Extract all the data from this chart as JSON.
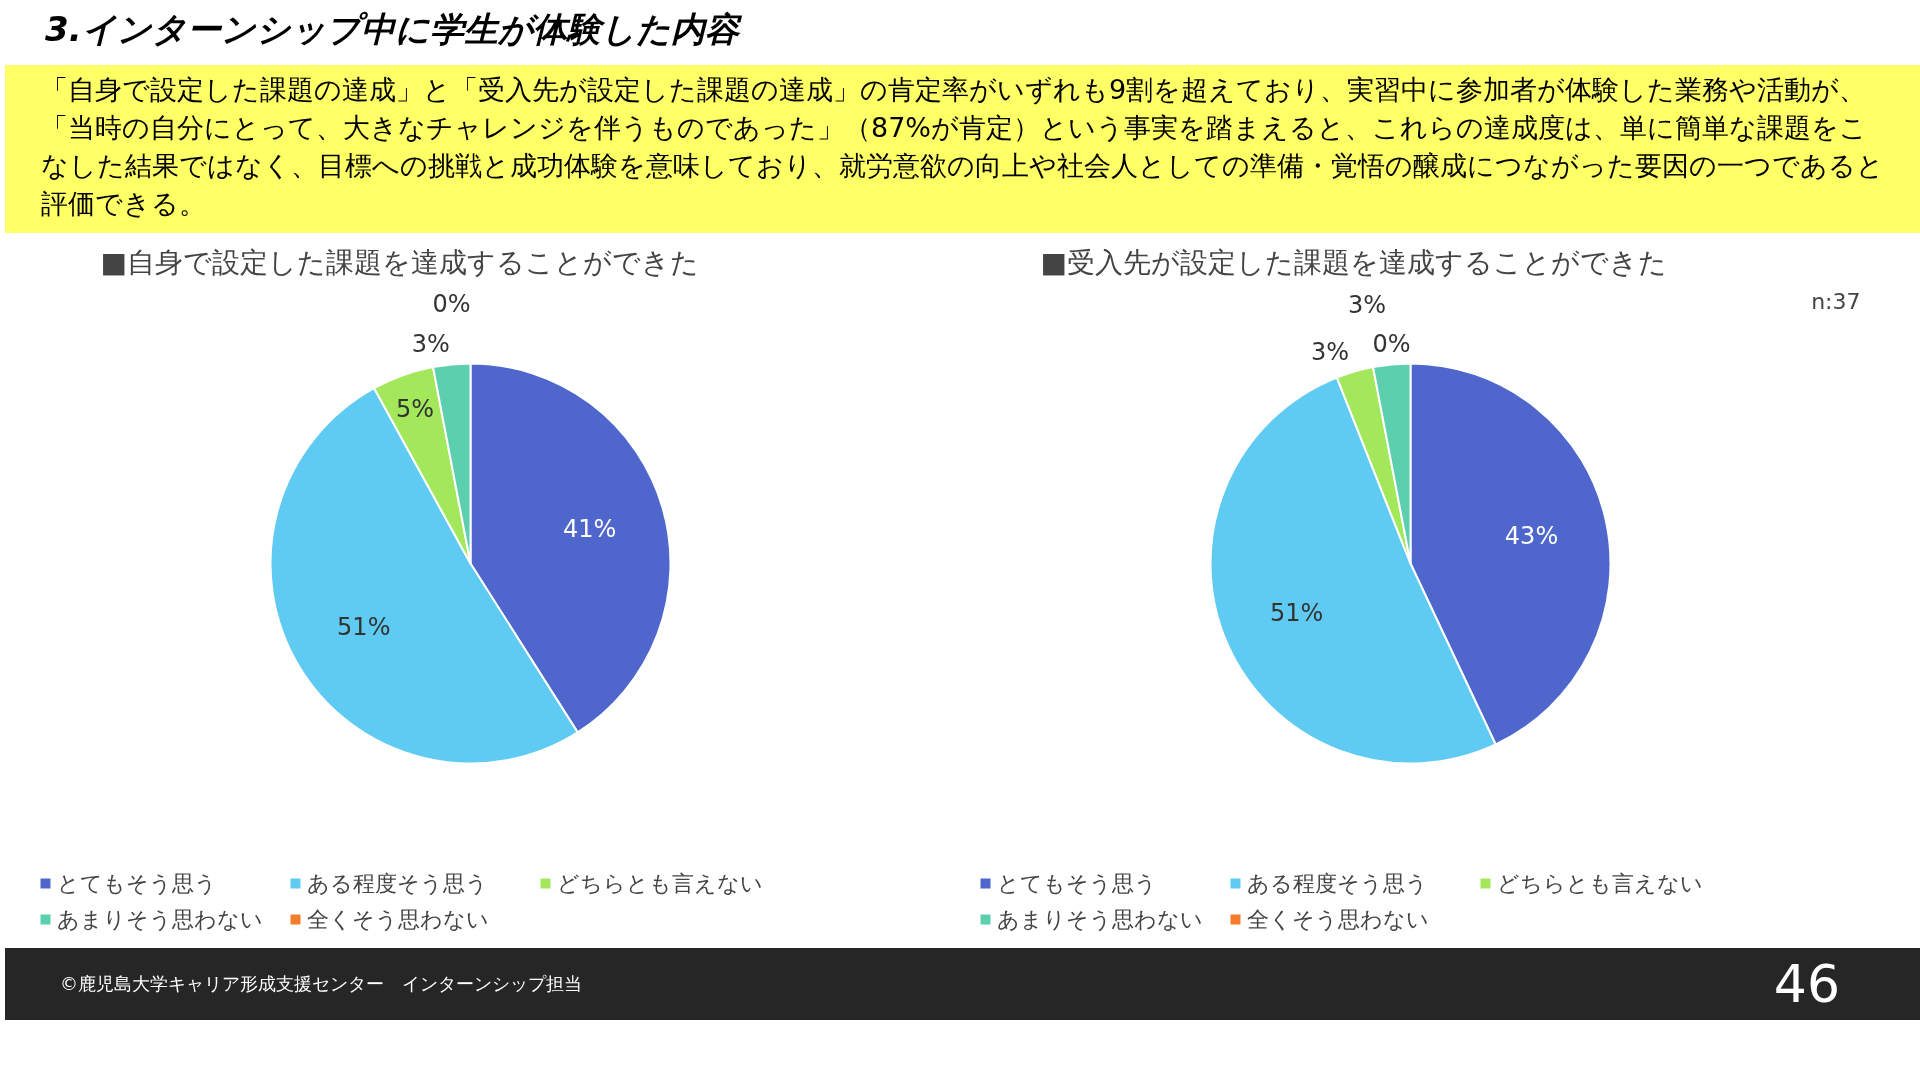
{
  "chart_data": [
    {
      "type": "other",
      "title": "3.インターンシップ中に学生が体験した内容",
      "subtitle": "「自身で設定した課題の達成」と「受入先が設定した課題の達成」の肯定率がいずれも9割を超えており、実習中に参加者が体験した業務や活動が、「当時の自分にとって、大きなチャレンジを伴うものであった」（87%が肯定）という事実を踏まえると、これらの達成度は、単に簡単な課題をこなした結果ではなく、目標への挑戦と成功体験を意味しており、就労意欲の向上や社会人としての準備・覚悟の醸成につながった要因の一つであると評価できる。",
      "annotations": [
        "©鹿児島大学キャリア形成支援センター　インターンシップ担当",
        "46"
      ]
    },
    {
      "type": "pie",
      "title": "■自身で設定した課題を達成することができた",
      "categories": [
        "とてもそう思う",
        "ある程度そう思う",
        "どちらとも言えない",
        "あまりそう思わない",
        "全くそう思わない"
      ],
      "values": [
        41,
        51,
        5,
        3,
        0
      ],
      "value_labels": [
        "41%",
        "51%",
        "5%",
        "3%",
        "0%"
      ],
      "colors": [
        "#4f67cc",
        "#5fcbf2",
        "#a3e85a",
        "#5ccfae",
        "#f57c2a"
      ],
      "legend": "bottom"
    },
    {
      "type": "pie",
      "title": "■受入先が設定した課題を達成することができた",
      "categories": [
        "とてもそう思う",
        "ある程度そう思う",
        "どちらとも言えない",
        "あまりそう思わない",
        "全くそう思わない"
      ],
      "values": [
        43,
        51,
        3,
        3,
        0
      ],
      "value_labels": [
        "43%",
        "51%",
        "3%",
        "3%",
        "0%"
      ],
      "colors": [
        "#4f67cc",
        "#5fcbf2",
        "#a3e85a",
        "#5ccfae",
        "#f57c2a"
      ],
      "legend": "bottom",
      "annotations": [
        "n:37"
      ]
    }
  ]
}
